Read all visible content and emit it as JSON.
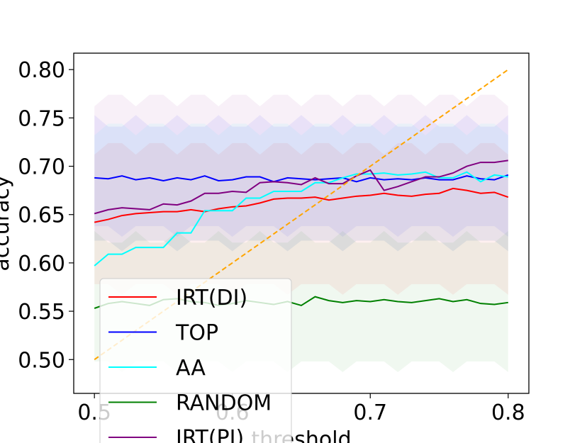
{
  "chart_data": {
    "type": "line",
    "xlabel": "threshold",
    "ylabel": "accuracy",
    "xlim": [
      0.485,
      0.815
    ],
    "ylim": [
      0.465,
      0.817
    ],
    "xticks": [
      0.5,
      0.6,
      0.7,
      0.8
    ],
    "xtick_labels": [
      "0.5",
      "0.6",
      "0.7",
      "0.8"
    ],
    "yticks": [
      0.5,
      0.55,
      0.6,
      0.65,
      0.7,
      0.75,
      0.8
    ],
    "ytick_labels": [
      "0.50",
      "0.55",
      "0.60",
      "0.65",
      "0.70",
      "0.75",
      "0.80"
    ],
    "grid": false,
    "legend_position": "lower-left",
    "x": [
      0.5,
      0.51,
      0.52,
      0.53,
      0.54,
      0.55,
      0.56,
      0.57,
      0.58,
      0.59,
      0.6,
      0.61,
      0.62,
      0.63,
      0.64,
      0.65,
      0.66,
      0.67,
      0.68,
      0.69,
      0.7,
      0.71,
      0.72,
      0.73,
      0.74,
      0.75,
      0.76,
      0.77,
      0.78,
      0.79,
      0.8
    ],
    "series": [
      {
        "name": "IRT(DI)",
        "color": "#ff0000",
        "values": [
          0.642,
          0.645,
          0.649,
          0.651,
          0.652,
          0.653,
          0.653,
          0.655,
          0.653,
          0.656,
          0.658,
          0.659,
          0.662,
          0.666,
          0.667,
          0.667,
          0.668,
          0.665,
          0.667,
          0.669,
          0.67,
          0.672,
          0.67,
          0.669,
          0.671,
          0.672,
          0.677,
          0.675,
          0.672,
          0.673,
          0.668
        ],
        "band": [
          0.575,
          0.72
        ]
      },
      {
        "name": "TOP",
        "color": "#0000ff",
        "values": [
          0.688,
          0.687,
          0.69,
          0.686,
          0.688,
          0.685,
          0.688,
          0.686,
          0.69,
          0.685,
          0.686,
          0.689,
          0.689,
          0.684,
          0.688,
          0.687,
          0.686,
          0.687,
          0.688,
          0.684,
          0.688,
          0.686,
          0.687,
          0.686,
          0.688,
          0.686,
          0.686,
          0.69,
          0.687,
          0.686,
          0.691
        ],
        "band": [
          0.635,
          0.745
        ]
      },
      {
        "name": "AA",
        "color": "#00ffff",
        "values": [
          0.597,
          0.609,
          0.609,
          0.616,
          0.616,
          0.616,
          0.631,
          0.631,
          0.654,
          0.654,
          0.654,
          0.667,
          0.667,
          0.674,
          0.674,
          0.674,
          0.683,
          0.683,
          0.688,
          0.692,
          0.692,
          0.693,
          0.691,
          0.692,
          0.694,
          0.688,
          0.688,
          0.694,
          0.684,
          0.691,
          0.689
        ],
        "band": [
          0.62,
          0.74
        ]
      },
      {
        "name": "RANDOM",
        "color": "#008000",
        "values": [
          0.553,
          0.558,
          0.56,
          0.558,
          0.556,
          0.562,
          0.563,
          0.56,
          0.559,
          0.556,
          0.558,
          0.561,
          0.559,
          0.557,
          0.56,
          0.556,
          0.565,
          0.561,
          0.559,
          0.561,
          0.56,
          0.562,
          0.56,
          0.559,
          0.561,
          0.563,
          0.56,
          0.562,
          0.558,
          0.557,
          0.559
        ],
        "band": [
          0.495,
          0.625
        ]
      },
      {
        "name": "IRT(PI)",
        "color": "#800080",
        "values": [
          0.651,
          0.655,
          0.657,
          0.656,
          0.655,
          0.661,
          0.66,
          0.664,
          0.672,
          0.672,
          0.674,
          0.673,
          0.683,
          0.684,
          0.683,
          0.681,
          0.688,
          0.682,
          0.682,
          0.69,
          0.696,
          0.675,
          0.679,
          0.684,
          0.689,
          0.689,
          0.693,
          0.7,
          0.704,
          0.704,
          0.706
        ],
        "band": [
          0.62,
          0.77
        ]
      },
      {
        "name": "",
        "color": "#ffa500",
        "dashed": true,
        "values": [
          0.5,
          0.51,
          0.52,
          0.53,
          0.54,
          0.55,
          0.56,
          0.57,
          0.58,
          0.59,
          0.6,
          0.61,
          0.62,
          0.63,
          0.64,
          0.65,
          0.66,
          0.67,
          0.68,
          0.69,
          0.7,
          0.71,
          0.72,
          0.73,
          0.74,
          0.75,
          0.76,
          0.77,
          0.78,
          0.79,
          0.8
        ]
      }
    ]
  }
}
